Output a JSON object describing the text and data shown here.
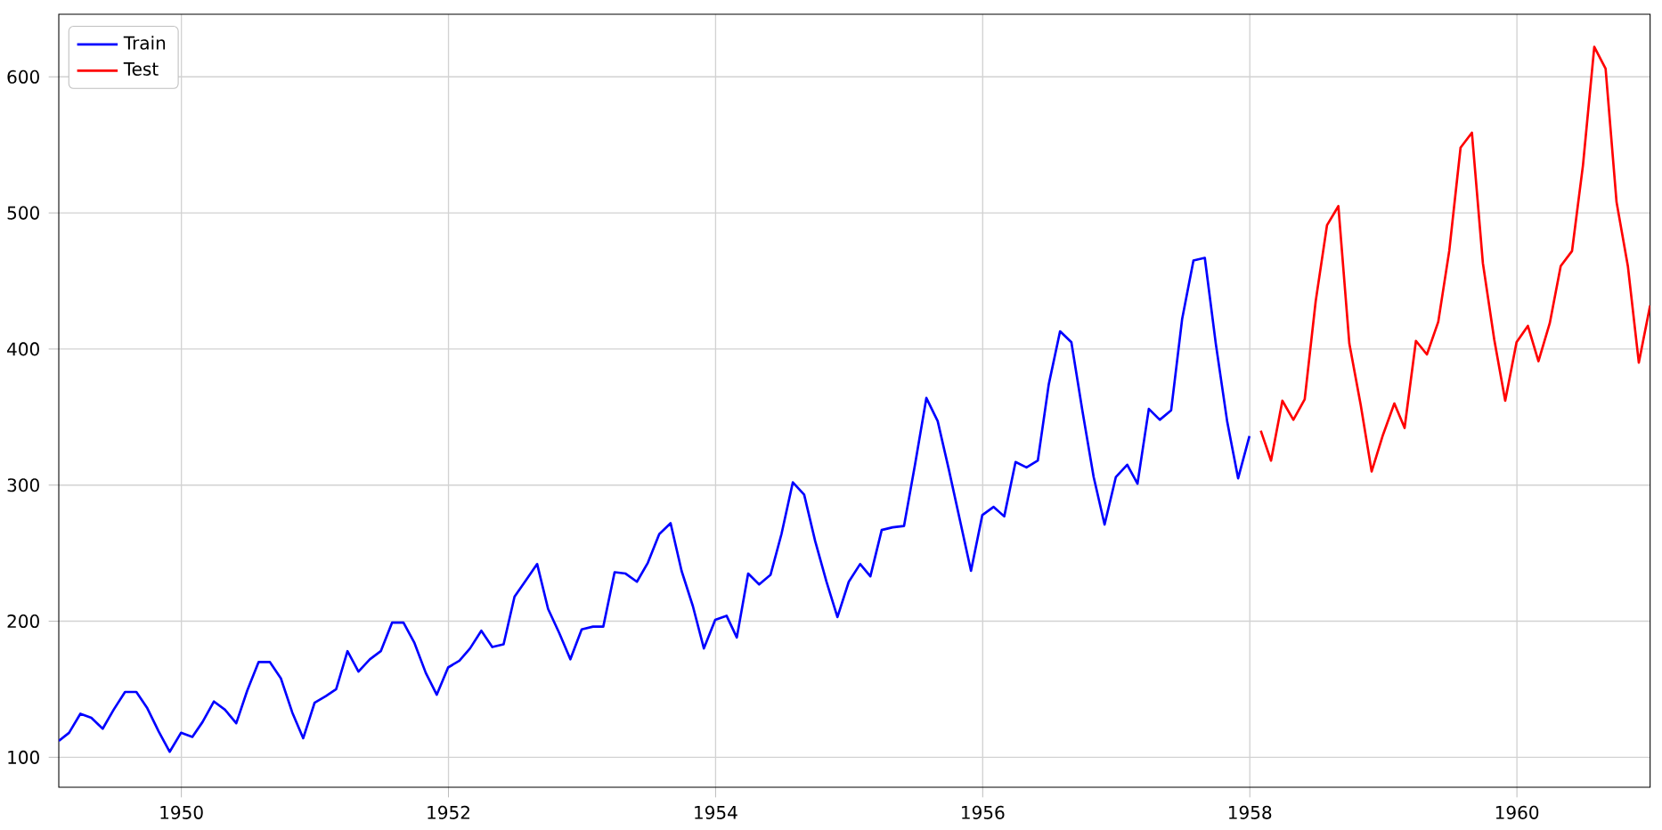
{
  "chart_data": {
    "type": "line",
    "series": [
      {
        "name": "Train",
        "color": "#0000ff",
        "x": [
          "1949-01-31",
          "1949-02-28",
          "1949-03-31",
          "1949-04-30",
          "1949-05-31",
          "1949-06-30",
          "1949-07-31",
          "1949-08-31",
          "1949-09-30",
          "1949-10-31",
          "1949-11-30",
          "1949-12-31",
          "1950-01-31",
          "1950-02-28",
          "1950-03-31",
          "1950-04-30",
          "1950-05-31",
          "1950-06-30",
          "1950-07-31",
          "1950-08-31",
          "1950-09-30",
          "1950-10-31",
          "1950-11-30",
          "1950-12-31",
          "1951-01-31",
          "1951-02-28",
          "1951-03-31",
          "1951-04-30",
          "1951-05-31",
          "1951-06-30",
          "1951-07-31",
          "1951-08-31",
          "1951-09-30",
          "1951-10-31",
          "1951-11-30",
          "1951-12-31",
          "1952-01-31",
          "1952-02-29",
          "1952-03-31",
          "1952-04-30",
          "1952-05-31",
          "1952-06-30",
          "1952-07-31",
          "1952-08-31",
          "1952-09-30",
          "1952-10-31",
          "1952-11-30",
          "1952-12-31",
          "1953-01-31",
          "1953-02-28",
          "1953-03-31",
          "1953-04-30",
          "1953-05-31",
          "1953-06-30",
          "1953-07-31",
          "1953-08-31",
          "1953-09-30",
          "1953-10-31",
          "1953-11-30",
          "1953-12-31",
          "1954-01-31",
          "1954-02-28",
          "1954-03-31",
          "1954-04-30",
          "1954-05-31",
          "1954-06-30",
          "1954-07-31",
          "1954-08-31",
          "1954-09-30",
          "1954-10-31",
          "1954-11-30",
          "1954-12-31",
          "1955-01-31",
          "1955-02-28",
          "1955-03-31",
          "1955-04-30",
          "1955-05-31",
          "1955-06-30",
          "1955-07-31",
          "1955-08-31",
          "1955-09-30",
          "1955-10-31",
          "1955-11-30",
          "1955-12-31",
          "1956-01-31",
          "1956-02-29",
          "1956-03-31",
          "1956-04-30",
          "1956-05-31",
          "1956-06-30",
          "1956-07-31",
          "1956-08-31",
          "1956-09-30",
          "1956-10-31",
          "1956-11-30",
          "1956-12-31",
          "1957-01-31",
          "1957-02-28",
          "1957-03-31",
          "1957-04-30",
          "1957-05-31",
          "1957-06-30",
          "1957-07-31",
          "1957-08-31",
          "1957-09-30",
          "1957-10-31",
          "1957-11-30",
          "1957-12-31"
        ],
        "values": [
          112,
          118,
          132,
          129,
          121,
          135,
          148,
          148,
          136,
          119,
          104,
          118,
          115,
          126,
          141,
          135,
          125,
          149,
          170,
          170,
          158,
          133,
          114,
          140,
          145,
          150,
          178,
          163,
          172,
          178,
          199,
          199,
          184,
          162,
          146,
          166,
          171,
          180,
          193,
          181,
          183,
          218,
          230,
          242,
          209,
          191,
          172,
          194,
          196,
          196,
          236,
          235,
          229,
          243,
          264,
          272,
          237,
          211,
          180,
          201,
          204,
          188,
          235,
          227,
          234,
          264,
          302,
          293,
          259,
          229,
          203,
          229,
          242,
          233,
          267,
          269,
          270,
          315,
          364,
          347,
          312,
          274,
          237,
          278,
          284,
          277,
          317,
          313,
          318,
          374,
          413,
          405,
          355,
          306,
          271,
          306,
          315,
          301,
          356,
          348,
          355,
          422,
          465,
          467,
          404,
          347,
          305,
          336
        ]
      },
      {
        "name": "Test",
        "color": "#ff0000",
        "x": [
          "1958-01-31",
          "1958-02-28",
          "1958-03-31",
          "1958-04-30",
          "1958-05-31",
          "1958-06-30",
          "1958-07-31",
          "1958-08-31",
          "1958-09-30",
          "1958-10-31",
          "1958-11-30",
          "1958-12-31",
          "1959-01-31",
          "1959-02-28",
          "1959-03-31",
          "1959-04-30",
          "1959-05-31",
          "1959-06-30",
          "1959-07-31",
          "1959-08-31",
          "1959-09-30",
          "1959-10-31",
          "1959-11-30",
          "1959-12-31",
          "1960-01-31",
          "1960-02-29",
          "1960-03-31",
          "1960-04-30",
          "1960-05-31",
          "1960-06-30",
          "1960-07-31",
          "1960-08-31",
          "1960-09-30",
          "1960-10-31",
          "1960-11-30",
          "1960-12-31"
        ],
        "values": [
          340,
          318,
          362,
          348,
          363,
          435,
          491,
          505,
          404,
          359,
          310,
          337,
          360,
          342,
          406,
          396,
          420,
          472,
          548,
          559,
          463,
          407,
          362,
          405,
          417,
          391,
          419,
          461,
          472,
          535,
          622,
          606,
          508,
          461,
          390,
          432
        ]
      }
    ],
    "xlim": [
      "1949-01-31",
      "1960-12-31"
    ],
    "xticks": [
      "1950",
      "1952",
      "1954",
      "1956",
      "1958",
      "1960"
    ],
    "ylim": [
      78,
      646
    ],
    "yticks": [
      100,
      200,
      300,
      400,
      500,
      600
    ],
    "grid": true,
    "legend": "top left",
    "marker": "none",
    "line_style": "solid"
  }
}
